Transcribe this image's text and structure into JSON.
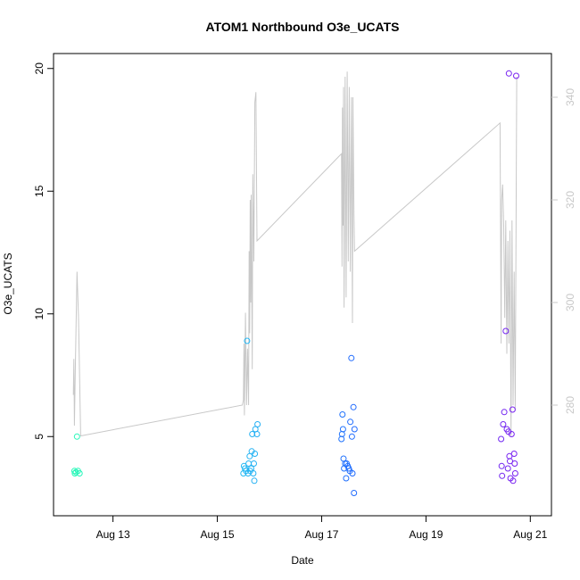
{
  "chart_data": {
    "type": "scatter",
    "title": "ATOM1 Northbound O3e_UCATS",
    "xlabel": "Date",
    "ylabel": "O3e_UCATS",
    "x_unit": "days in August",
    "xlim": [
      12.1,
      21.2
    ],
    "ylim": [
      2.1,
      20.5
    ],
    "x_ticks": [
      13,
      15,
      17,
      19,
      21
    ],
    "x_tick_labels": [
      "Aug 13",
      "Aug 15",
      "Aug 17",
      "Aug 19",
      "Aug 21"
    ],
    "y_ticks": [
      5,
      10,
      15,
      20
    ],
    "y_tick_labels": [
      "5",
      "10",
      "15",
      "20"
    ],
    "y2lim": [
      260,
      348
    ],
    "y2_ticks": [
      280,
      300,
      320,
      340
    ],
    "y2_tick_labels": [
      "280",
      "300",
      "320",
      "340"
    ],
    "colors": {
      "line": "#c8c8c8",
      "right_axis": "#c8c8c8",
      "points_gradient": [
        "#27f8b8",
        "#25c8f0",
        "#2060ff",
        "#7a20f0"
      ]
    },
    "series": [
      {
        "type": "scatter",
        "axis": "left",
        "points": [
          [
            12.26,
            3.6
          ],
          [
            12.27,
            3.5
          ],
          [
            12.29,
            3.55
          ],
          [
            12.31,
            5.0
          ],
          [
            12.33,
            3.6
          ],
          [
            12.36,
            3.5
          ],
          [
            15.5,
            3.5
          ],
          [
            15.51,
            3.8
          ],
          [
            15.53,
            3.7
          ],
          [
            15.55,
            3.6
          ],
          [
            15.57,
            8.9
          ],
          [
            15.59,
            3.5
          ],
          [
            15.6,
            3.9
          ],
          [
            15.62,
            4.2
          ],
          [
            15.63,
            3.6
          ],
          [
            15.65,
            3.7
          ],
          [
            15.66,
            4.4
          ],
          [
            15.67,
            5.1
          ],
          [
            15.69,
            3.5
          ],
          [
            15.7,
            3.9
          ],
          [
            15.71,
            3.2
          ],
          [
            15.72,
            4.3
          ],
          [
            15.73,
            5.3
          ],
          [
            15.76,
            5.1
          ],
          [
            15.77,
            5.5
          ],
          [
            17.38,
            4.9
          ],
          [
            17.39,
            5.1
          ],
          [
            17.4,
            5.9
          ],
          [
            17.41,
            5.3
          ],
          [
            17.42,
            4.1
          ],
          [
            17.43,
            3.7
          ],
          [
            17.45,
            3.9
          ],
          [
            17.47,
            3.3
          ],
          [
            17.48,
            3.9
          ],
          [
            17.5,
            3.8
          ],
          [
            17.52,
            3.7
          ],
          [
            17.54,
            3.6
          ],
          [
            17.55,
            5.6
          ],
          [
            17.57,
            8.2
          ],
          [
            17.58,
            5.0
          ],
          [
            17.59,
            3.5
          ],
          [
            17.61,
            6.2
          ],
          [
            17.62,
            2.7
          ],
          [
            17.63,
            5.3
          ],
          [
            20.44,
            4.9
          ],
          [
            20.45,
            3.8
          ],
          [
            20.46,
            3.4
          ],
          [
            20.48,
            5.5
          ],
          [
            20.5,
            6.0
          ],
          [
            20.53,
            9.3
          ],
          [
            20.55,
            5.3
          ],
          [
            20.57,
            3.7
          ],
          [
            20.58,
            5.2
          ],
          [
            20.59,
            19.8
          ],
          [
            20.6,
            4.2
          ],
          [
            20.61,
            4.0
          ],
          [
            20.62,
            3.3
          ],
          [
            20.64,
            5.1
          ],
          [
            20.66,
            6.1
          ],
          [
            20.67,
            3.2
          ],
          [
            20.69,
            4.3
          ],
          [
            20.7,
            3.9
          ],
          [
            20.71,
            3.5
          ],
          [
            20.73,
            19.7
          ]
        ]
      },
      {
        "type": "line",
        "axis": "right",
        "points": [
          [
            12.24,
            282
          ],
          [
            12.25,
            289
          ],
          [
            12.26,
            276
          ],
          [
            12.28,
            288
          ],
          [
            12.31,
            306
          ],
          [
            12.34,
            297
          ],
          [
            12.38,
            274
          ],
          [
            15.48,
            280
          ],
          [
            15.5,
            281
          ],
          [
            15.51,
            292
          ],
          [
            15.52,
            278
          ],
          [
            15.54,
            298
          ],
          [
            15.56,
            280
          ],
          [
            15.58,
            291
          ],
          [
            15.6,
            280
          ],
          [
            15.61,
            310
          ],
          [
            15.62,
            294
          ],
          [
            15.63,
            320
          ],
          [
            15.64,
            300
          ],
          [
            15.65,
            321
          ],
          [
            15.67,
            287
          ],
          [
            15.68,
            325
          ],
          [
            15.7,
            308
          ],
          [
            15.72,
            339
          ],
          [
            15.74,
            341
          ],
          [
            15.76,
            312
          ],
          [
            17.38,
            329
          ],
          [
            17.39,
            307
          ],
          [
            17.4,
            338
          ],
          [
            17.41,
            315
          ],
          [
            17.42,
            342
          ],
          [
            17.43,
            299
          ],
          [
            17.45,
            344
          ],
          [
            17.47,
            301
          ],
          [
            17.49,
            345
          ],
          [
            17.51,
            308
          ],
          [
            17.53,
            342
          ],
          [
            17.55,
            306
          ],
          [
            17.57,
            340
          ],
          [
            17.59,
            296
          ],
          [
            17.6,
            340
          ],
          [
            17.62,
            317
          ],
          [
            17.63,
            310
          ],
          [
            20.42,
            335
          ],
          [
            20.44,
            292
          ],
          [
            20.45,
            320
          ],
          [
            20.47,
            323
          ],
          [
            20.49,
            315
          ],
          [
            20.51,
            297
          ],
          [
            20.53,
            316
          ],
          [
            20.55,
            290
          ],
          [
            20.57,
            312
          ],
          [
            20.59,
            292
          ],
          [
            20.61,
            314
          ],
          [
            20.63,
            274
          ],
          [
            20.65,
            316
          ],
          [
            20.67,
            280
          ],
          [
            20.69,
            306
          ],
          [
            20.71,
            279
          ],
          [
            20.74,
            344
          ]
        ]
      }
    ]
  }
}
